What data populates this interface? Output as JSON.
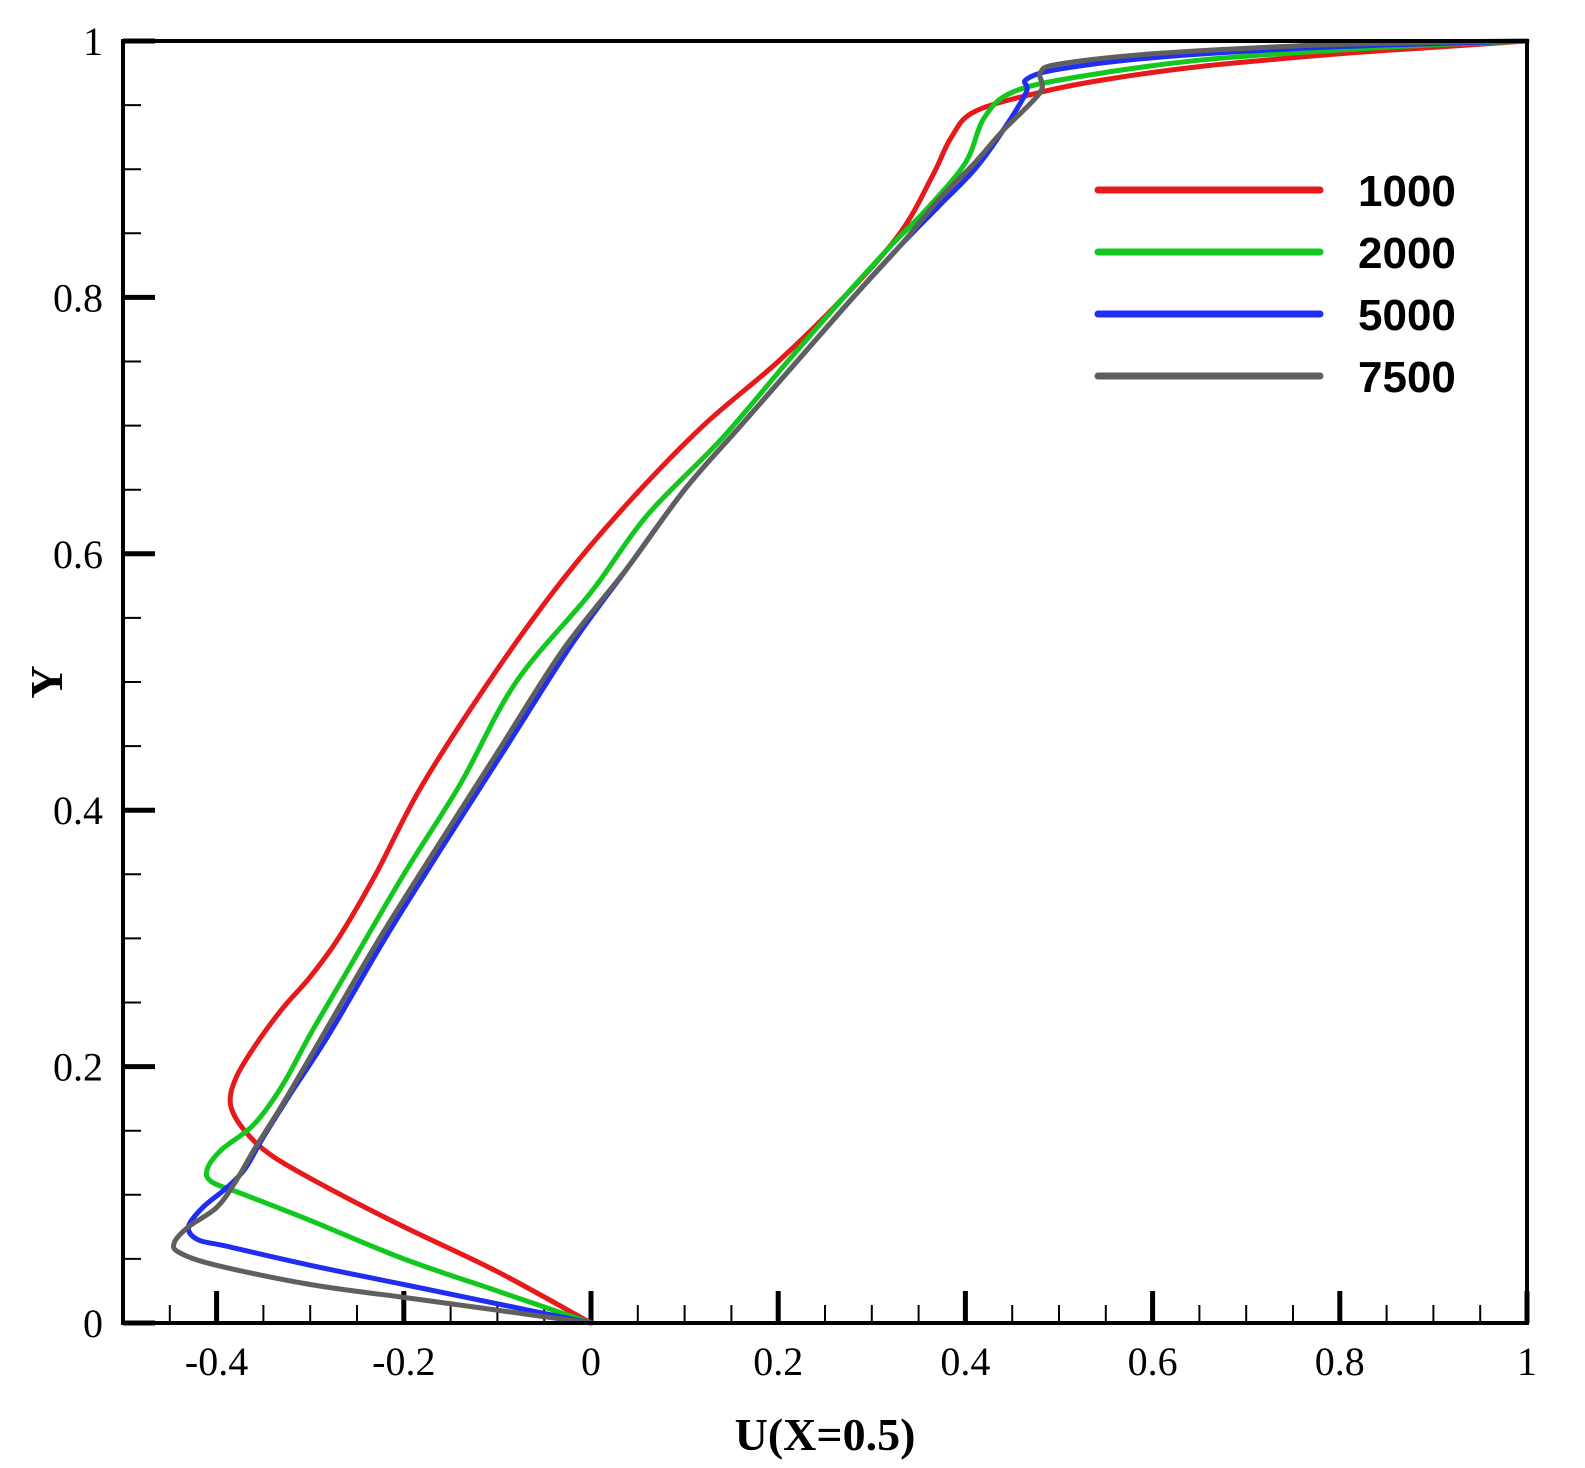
{
  "chart_data": {
    "type": "line",
    "title": "",
    "xlabel": "U(X=0.5)",
    "ylabel": "Y",
    "xlim": [
      -0.5,
      1
    ],
    "ylim": [
      0,
      1
    ],
    "grid": false,
    "legend_position": "top-right",
    "x_ticks": [
      {
        "value": -0.4,
        "label": "-0.4"
      },
      {
        "value": -0.2,
        "label": "-0.2"
      },
      {
        "value": 0,
        "label": "0"
      },
      {
        "value": 0.2,
        "label": "0.2"
      },
      {
        "value": 0.4,
        "label": "0.4"
      },
      {
        "value": 0.6,
        "label": "0.6"
      },
      {
        "value": 0.8,
        "label": "0.8"
      },
      {
        "value": 1,
        "label": "1"
      }
    ],
    "y_ticks": [
      {
        "value": 0,
        "label": "0"
      },
      {
        "value": 0.2,
        "label": "0.2"
      },
      {
        "value": 0.4,
        "label": "0.4"
      },
      {
        "value": 0.6,
        "label": "0.6"
      },
      {
        "value": 0.8,
        "label": "0.8"
      },
      {
        "value": 1,
        "label": "1"
      }
    ],
    "series": [
      {
        "name": "1000",
        "color": "#e8191b",
        "points": [
          [
            0,
            0
          ],
          [
            -0.1,
            0.04
          ],
          [
            -0.2,
            0.075
          ],
          [
            -0.28,
            0.105
          ],
          [
            -0.34,
            0.13
          ],
          [
            -0.37,
            0.15
          ],
          [
            -0.385,
            0.17
          ],
          [
            -0.38,
            0.19
          ],
          [
            -0.36,
            0.215
          ],
          [
            -0.33,
            0.245
          ],
          [
            -0.3,
            0.27
          ],
          [
            -0.27,
            0.3
          ],
          [
            -0.23,
            0.35
          ],
          [
            -0.18,
            0.42
          ],
          [
            -0.1,
            0.51
          ],
          [
            -0.03,
            0.58
          ],
          [
            0.04,
            0.64
          ],
          [
            0.12,
            0.7
          ],
          [
            0.2,
            0.75
          ],
          [
            0.27,
            0.8
          ],
          [
            0.33,
            0.85
          ],
          [
            0.365,
            0.895
          ],
          [
            0.385,
            0.925
          ],
          [
            0.41,
            0.945
          ],
          [
            0.48,
            0.96
          ],
          [
            0.55,
            0.97
          ],
          [
            0.65,
            0.98
          ],
          [
            0.8,
            0.99
          ],
          [
            0.9,
            0.995
          ],
          [
            1,
            1
          ]
        ]
      },
      {
        "name": "2000",
        "color": "#12c81e",
        "points": [
          [
            0,
            0
          ],
          [
            -0.1,
            0.025
          ],
          [
            -0.2,
            0.05
          ],
          [
            -0.3,
            0.08
          ],
          [
            -0.37,
            0.1
          ],
          [
            -0.405,
            0.11
          ],
          [
            -0.41,
            0.12
          ],
          [
            -0.395,
            0.135
          ],
          [
            -0.36,
            0.155
          ],
          [
            -0.33,
            0.185
          ],
          [
            -0.3,
            0.225
          ],
          [
            -0.26,
            0.275
          ],
          [
            -0.2,
            0.35
          ],
          [
            -0.14,
            0.42
          ],
          [
            -0.08,
            0.5
          ],
          [
            0,
            0.57
          ],
          [
            0.06,
            0.63
          ],
          [
            0.14,
            0.69
          ],
          [
            0.21,
            0.75
          ],
          [
            0.27,
            0.8
          ],
          [
            0.32,
            0.84
          ],
          [
            0.36,
            0.87
          ],
          [
            0.4,
            0.905
          ],
          [
            0.42,
            0.94
          ],
          [
            0.45,
            0.96
          ],
          [
            0.52,
            0.972
          ],
          [
            0.65,
            0.985
          ],
          [
            0.8,
            0.993
          ],
          [
            0.9,
            0.997
          ],
          [
            1,
            1
          ]
        ]
      },
      {
        "name": "5000",
        "color": "#1f2ef2",
        "points": [
          [
            0,
            0
          ],
          [
            -0.1,
            0.015
          ],
          [
            -0.2,
            0.03
          ],
          [
            -0.3,
            0.045
          ],
          [
            -0.39,
            0.06
          ],
          [
            -0.42,
            0.065
          ],
          [
            -0.43,
            0.075
          ],
          [
            -0.415,
            0.09
          ],
          [
            -0.39,
            0.105
          ],
          [
            -0.37,
            0.12
          ],
          [
            -0.35,
            0.145
          ],
          [
            -0.32,
            0.18
          ],
          [
            -0.28,
            0.225
          ],
          [
            -0.22,
            0.3
          ],
          [
            -0.16,
            0.37
          ],
          [
            -0.09,
            0.45
          ],
          [
            -0.02,
            0.53
          ],
          [
            0.04,
            0.59
          ],
          [
            0.1,
            0.65
          ],
          [
            0.16,
            0.7
          ],
          [
            0.22,
            0.75
          ],
          [
            0.28,
            0.8
          ],
          [
            0.33,
            0.84
          ],
          [
            0.37,
            0.87
          ],
          [
            0.41,
            0.9
          ],
          [
            0.44,
            0.93
          ],
          [
            0.465,
            0.96
          ],
          [
            0.465,
            0.97
          ],
          [
            0.5,
            0.978
          ],
          [
            0.6,
            0.987
          ],
          [
            0.75,
            0.994
          ],
          [
            0.9,
            0.998
          ],
          [
            1,
            1
          ]
        ]
      },
      {
        "name": "7500",
        "color": "#5f5f5f",
        "points": [
          [
            0,
            0
          ],
          [
            -0.1,
            0.01
          ],
          [
            -0.2,
            0.02
          ],
          [
            -0.3,
            0.03
          ],
          [
            -0.4,
            0.045
          ],
          [
            -0.44,
            0.055
          ],
          [
            -0.445,
            0.063
          ],
          [
            -0.43,
            0.075
          ],
          [
            -0.4,
            0.09
          ],
          [
            -0.38,
            0.11
          ],
          [
            -0.36,
            0.135
          ],
          [
            -0.33,
            0.17
          ],
          [
            -0.29,
            0.22
          ],
          [
            -0.23,
            0.295
          ],
          [
            -0.17,
            0.365
          ],
          [
            -0.1,
            0.445
          ],
          [
            -0.03,
            0.525
          ],
          [
            0.04,
            0.59
          ],
          [
            0.1,
            0.65
          ],
          [
            0.16,
            0.7
          ],
          [
            0.22,
            0.75
          ],
          [
            0.28,
            0.8
          ],
          [
            0.33,
            0.84
          ],
          [
            0.37,
            0.875
          ],
          [
            0.41,
            0.905
          ],
          [
            0.44,
            0.93
          ],
          [
            0.48,
            0.96
          ],
          [
            0.48,
            0.975
          ],
          [
            0.5,
            0.982
          ],
          [
            0.6,
            0.99
          ],
          [
            0.75,
            0.996
          ],
          [
            0.9,
            0.999
          ],
          [
            1,
            1
          ]
        ]
      }
    ]
  }
}
